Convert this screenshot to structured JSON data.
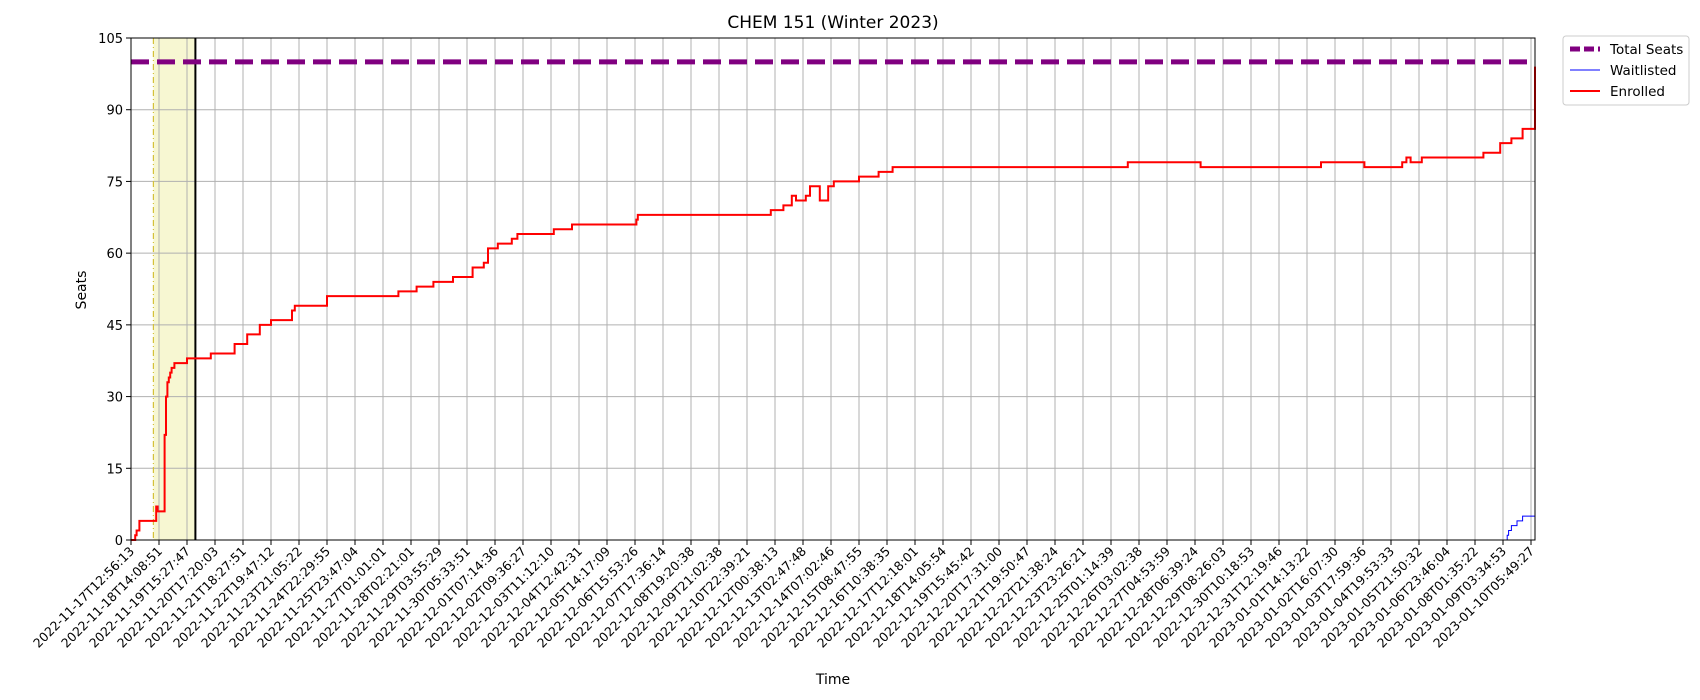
{
  "chart_data": {
    "type": "line",
    "title": "CHEM 151 (Winter 2023)",
    "xlabel": "Time",
    "ylabel": "Seats",
    "ylim": [
      0,
      105
    ],
    "yticks": [
      0,
      15,
      30,
      45,
      60,
      75,
      90,
      105
    ],
    "grid": true,
    "legend_position": "outside-top-right",
    "x_tick_labels": [
      "2022-11-17T12:56:13",
      "2022-11-18T14:08:51",
      "2022-11-19T15:27:47",
      "2022-11-20T17:20:03",
      "2022-11-21T18:27:51",
      "2022-11-22T19:47:12",
      "2022-11-23T21:05:22",
      "2022-11-24T22:29:55",
      "2022-11-25T23:47:04",
      "2022-11-27T01:01:01",
      "2022-11-28T02:21:01",
      "2022-11-29T03:55:29",
      "2022-11-30T05:33:51",
      "2022-12-01T07:14:36",
      "2022-12-02T09:36:27",
      "2022-12-03T11:12:10",
      "2022-12-04T12:42:31",
      "2022-12-05T14:17:09",
      "2022-12-06T15:53:26",
      "2022-12-07T17:36:14",
      "2022-12-08T19:20:38",
      "2022-12-09T21:02:38",
      "2022-12-10T22:39:21",
      "2022-12-12T00:38:13",
      "2022-12-13T02:47:48",
      "2022-12-14T07:02:46",
      "2022-12-15T08:47:55",
      "2022-12-16T10:38:35",
      "2022-12-17T12:18:01",
      "2022-12-18T14:05:54",
      "2022-12-19T15:45:42",
      "2022-12-20T17:31:00",
      "2022-12-21T19:50:47",
      "2022-12-22T21:38:24",
      "2022-12-23T23:26:21",
      "2022-12-25T01:14:39",
      "2022-12-26T03:02:38",
      "2022-12-27T04:53:59",
      "2022-12-28T06:39:24",
      "2022-12-29T08:26:03",
      "2022-12-30T10:18:53",
      "2022-12-31T12:19:46",
      "2023-01-01T14:13:22",
      "2023-01-02T16:07:30",
      "2023-01-03T17:59:36",
      "2023-01-04T19:53:33",
      "2023-01-05T21:50:32",
      "2023-01-06T23:46:04",
      "2023-01-08T01:35:22",
      "2023-01-09T03:34:53",
      "2023-01-10T05:49:27"
    ],
    "highlight_span": {
      "x_start": 0.8,
      "x_end": 2.3,
      "color": "#f7f7d2"
    },
    "vertical_lines": [
      {
        "x": 0.8,
        "color": "#d4c13a",
        "style": "dashdot"
      },
      {
        "x": 2.3,
        "color": "#000000",
        "style": "solid"
      }
    ],
    "series": [
      {
        "name": "Total Seats",
        "color": "#800080",
        "style": "dashed",
        "width": 5,
        "x": [
          0,
          50.25
        ],
        "y": [
          100,
          100
        ]
      },
      {
        "name": "Waitlisted",
        "color": "#0000ff",
        "style": "solid",
        "width": 1,
        "x": [
          0,
          49.1,
          49.15,
          49.2,
          49.3,
          49.5,
          49.7,
          50.25
        ],
        "y": [
          0,
          0,
          1,
          2,
          3,
          4,
          5,
          5
        ]
      },
      {
        "name": "Enrolled",
        "color": "#ff0000",
        "style": "solid",
        "width": 2,
        "x": [
          0,
          0.15,
          0.2,
          0.3,
          0.45,
          0.9,
          0.95,
          1.15,
          1.2,
          1.25,
          1.3,
          1.35,
          1.4,
          1.45,
          1.5,
          1.55,
          1.6,
          1.7,
          2.0,
          2.3,
          2.85,
          3.7,
          4.15,
          4.6,
          5.0,
          5.75,
          5.85,
          6.9,
          7.0,
          9.55,
          10.2,
          10.8,
          11.5,
          12.2,
          12.6,
          12.75,
          13.1,
          13.6,
          13.8,
          14.0,
          15.1,
          15.75,
          18.05,
          18.1,
          22.4,
          22.85,
          23.3,
          23.6,
          23.75,
          24.1,
          24.25,
          24.6,
          24.9,
          25.1,
          26.0,
          26.7,
          27.2,
          35.6,
          37.5,
          38.2,
          41.3,
          42.5,
          44.05,
          45.4,
          45.55,
          45.7,
          46.1,
          48.3,
          48.9,
          49.3,
          49.7,
          50.25
        ],
        "y": [
          0,
          1,
          2,
          4,
          4,
          7,
          6,
          6,
          22,
          30,
          33,
          34,
          35,
          36,
          36,
          37,
          37,
          37,
          38,
          38,
          39,
          41,
          43,
          45,
          46,
          48,
          49,
          49,
          51,
          52,
          53,
          54,
          55,
          57,
          58,
          61,
          62,
          63,
          64,
          64,
          65,
          66,
          67,
          68,
          68,
          69,
          70,
          72,
          71,
          72,
          74,
          71,
          74,
          75,
          76,
          77,
          78,
          79,
          79,
          78,
          78,
          79,
          78,
          79,
          80,
          79,
          80,
          81,
          83,
          84,
          86,
          99
        ]
      }
    ]
  }
}
